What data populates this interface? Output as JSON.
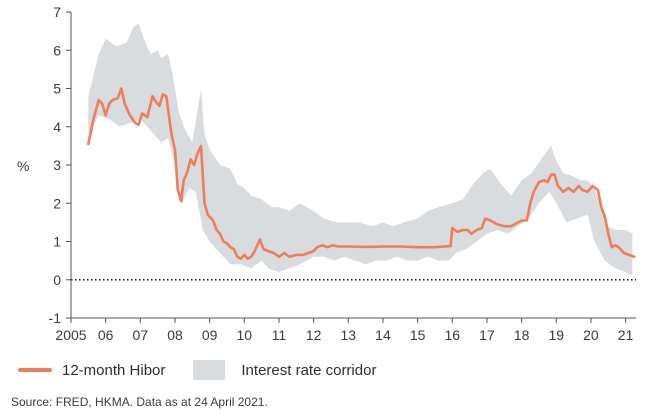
{
  "chart_data": {
    "type": "line",
    "title": "",
    "xlabel": "",
    "ylabel": "%",
    "xlim": [
      2005,
      2021.3
    ],
    "ylim": [
      -1,
      7
    ],
    "x_ticks": [
      2005,
      2006,
      2007,
      2008,
      2009,
      2010,
      2011,
      2012,
      2013,
      2014,
      2015,
      2016,
      2017,
      2018,
      2019,
      2020,
      2021
    ],
    "x_tick_labels": [
      "2005",
      "06",
      "07",
      "08",
      "09",
      "10",
      "11",
      "12",
      "13",
      "14",
      "15",
      "16",
      "17",
      "18",
      "19",
      "20",
      "21"
    ],
    "y_ticks": [
      -1,
      0,
      1,
      2,
      3,
      4,
      5,
      6,
      7
    ],
    "y_tick_labels": [
      "-1",
      "0",
      "1",
      "2",
      "3",
      "4",
      "5",
      "6",
      "7"
    ],
    "zero_line": true,
    "grid": false,
    "legend_position": "bottom-left",
    "band": {
      "name": "Interest rate corridor",
      "color": "#d9dcdf",
      "upper": [
        [
          2005.5,
          4.8
        ],
        [
          2005.8,
          5.9
        ],
        [
          2006.0,
          6.3
        ],
        [
          2006.3,
          6.1
        ],
        [
          2006.6,
          6.2
        ],
        [
          2006.8,
          6.6
        ],
        [
          2006.95,
          6.7
        ],
        [
          2007.1,
          6.3
        ],
        [
          2007.3,
          5.9
        ],
        [
          2007.5,
          6.0
        ],
        [
          2007.6,
          5.8
        ],
        [
          2007.8,
          5.9
        ],
        [
          2007.9,
          5.5
        ],
        [
          2008.0,
          5.0
        ],
        [
          2008.1,
          4.4
        ],
        [
          2008.3,
          3.9
        ],
        [
          2008.5,
          3.6
        ],
        [
          2008.7,
          4.7
        ],
        [
          2008.75,
          5.0
        ],
        [
          2008.85,
          3.8
        ],
        [
          2009.0,
          3.4
        ],
        [
          2009.3,
          3.0
        ],
        [
          2009.6,
          2.9
        ],
        [
          2009.8,
          2.5
        ],
        [
          2010.0,
          2.4
        ],
        [
          2010.2,
          2.2
        ],
        [
          2010.5,
          2.1
        ],
        [
          2010.8,
          1.9
        ],
        [
          2011.0,
          1.9
        ],
        [
          2011.3,
          1.8
        ],
        [
          2011.6,
          2.0
        ],
        [
          2012.0,
          1.8
        ],
        [
          2012.3,
          1.6
        ],
        [
          2012.7,
          1.5
        ],
        [
          2013.0,
          1.5
        ],
        [
          2013.3,
          1.5
        ],
        [
          2013.7,
          1.4
        ],
        [
          2014.0,
          1.5
        ],
        [
          2014.3,
          1.4
        ],
        [
          2014.6,
          1.5
        ],
        [
          2015.0,
          1.6
        ],
        [
          2015.3,
          1.8
        ],
        [
          2015.6,
          1.9
        ],
        [
          2016.0,
          2.0
        ],
        [
          2016.3,
          2.1
        ],
        [
          2016.6,
          2.5
        ],
        [
          2016.9,
          2.8
        ],
        [
          2017.1,
          2.9
        ],
        [
          2017.4,
          2.5
        ],
        [
          2017.7,
          2.2
        ],
        [
          2018.0,
          2.6
        ],
        [
          2018.3,
          2.8
        ],
        [
          2018.6,
          3.2
        ],
        [
          2018.85,
          3.5
        ],
        [
          2019.0,
          3.1
        ],
        [
          2019.2,
          2.8
        ],
        [
          2019.5,
          2.7
        ],
        [
          2019.7,
          2.6
        ],
        [
          2019.9,
          2.6
        ],
        [
          2020.1,
          2.4
        ],
        [
          2020.3,
          1.9
        ],
        [
          2020.5,
          1.4
        ],
        [
          2020.7,
          1.3
        ],
        [
          2021.0,
          1.3
        ],
        [
          2021.2,
          1.2
        ]
      ],
      "lower": [
        [
          2005.5,
          3.8
        ],
        [
          2005.8,
          4.3
        ],
        [
          2006.1,
          4.2
        ],
        [
          2006.4,
          4.0
        ],
        [
          2006.7,
          4.1
        ],
        [
          2007.0,
          4.2
        ],
        [
          2007.3,
          3.9
        ],
        [
          2007.6,
          3.6
        ],
        [
          2007.8,
          3.7
        ],
        [
          2008.0,
          3.0
        ],
        [
          2008.2,
          2.0
        ],
        [
          2008.4,
          2.4
        ],
        [
          2008.6,
          2.3
        ],
        [
          2008.8,
          1.3
        ],
        [
          2009.0,
          1.0
        ],
        [
          2009.3,
          0.7
        ],
        [
          2009.6,
          0.4
        ],
        [
          2009.9,
          0.4
        ],
        [
          2010.2,
          0.3
        ],
        [
          2010.5,
          0.5
        ],
        [
          2010.7,
          0.3
        ],
        [
          2011.0,
          0.2
        ],
        [
          2011.3,
          0.3
        ],
        [
          2011.6,
          0.4
        ],
        [
          2012.0,
          0.6
        ],
        [
          2012.3,
          0.6
        ],
        [
          2012.6,
          0.5
        ],
        [
          2012.9,
          0.6
        ],
        [
          2013.2,
          0.5
        ],
        [
          2013.5,
          0.4
        ],
        [
          2013.8,
          0.5
        ],
        [
          2014.1,
          0.5
        ],
        [
          2014.4,
          0.6
        ],
        [
          2014.7,
          0.5
        ],
        [
          2015.0,
          0.5
        ],
        [
          2015.3,
          0.6
        ],
        [
          2015.6,
          0.5
        ],
        [
          2015.9,
          0.5
        ],
        [
          2016.1,
          0.7
        ],
        [
          2016.4,
          0.8
        ],
        [
          2016.7,
          1.0
        ],
        [
          2017.0,
          1.2
        ],
        [
          2017.3,
          1.3
        ],
        [
          2017.6,
          1.2
        ],
        [
          2017.9,
          1.4
        ],
        [
          2018.2,
          1.6
        ],
        [
          2018.5,
          2.0
        ],
        [
          2018.8,
          2.3
        ],
        [
          2019.0,
          2.0
        ],
        [
          2019.3,
          1.5
        ],
        [
          2019.6,
          1.6
        ],
        [
          2019.9,
          1.7
        ],
        [
          2020.1,
          1.0
        ],
        [
          2020.4,
          0.5
        ],
        [
          2020.7,
          0.3
        ],
        [
          2021.0,
          0.2
        ],
        [
          2021.2,
          0.1
        ]
      ]
    },
    "series": [
      {
        "name": "12-month Hibor",
        "color": "#ee7d5b",
        "points": [
          [
            2005.5,
            3.55
          ],
          [
            2005.65,
            4.2
          ],
          [
            2005.8,
            4.7
          ],
          [
            2005.9,
            4.6
          ],
          [
            2006.0,
            4.3
          ],
          [
            2006.1,
            4.6
          ],
          [
            2006.2,
            4.7
          ],
          [
            2006.35,
            4.75
          ],
          [
            2006.45,
            5.0
          ],
          [
            2006.55,
            4.6
          ],
          [
            2006.7,
            4.3
          ],
          [
            2006.85,
            4.1
          ],
          [
            2006.95,
            4.05
          ],
          [
            2007.05,
            4.35
          ],
          [
            2007.2,
            4.25
          ],
          [
            2007.35,
            4.8
          ],
          [
            2007.45,
            4.65
          ],
          [
            2007.55,
            4.55
          ],
          [
            2007.65,
            4.85
          ],
          [
            2007.75,
            4.8
          ],
          [
            2007.9,
            3.8
          ],
          [
            2008.0,
            3.4
          ],
          [
            2008.08,
            2.35
          ],
          [
            2008.18,
            2.05
          ],
          [
            2008.25,
            2.6
          ],
          [
            2008.35,
            2.8
          ],
          [
            2008.45,
            3.15
          ],
          [
            2008.55,
            3.0
          ],
          [
            2008.65,
            3.3
          ],
          [
            2008.75,
            3.5
          ],
          [
            2008.85,
            2.0
          ],
          [
            2008.95,
            1.7
          ],
          [
            2009.1,
            1.55
          ],
          [
            2009.2,
            1.3
          ],
          [
            2009.3,
            1.2
          ],
          [
            2009.4,
            1.0
          ],
          [
            2009.5,
            0.95
          ],
          [
            2009.6,
            0.85
          ],
          [
            2009.7,
            0.8
          ],
          [
            2009.8,
            0.6
          ],
          [
            2009.9,
            0.55
          ],
          [
            2010.0,
            0.65
          ],
          [
            2010.1,
            0.55
          ],
          [
            2010.2,
            0.6
          ],
          [
            2010.3,
            0.75
          ],
          [
            2010.45,
            1.05
          ],
          [
            2010.55,
            0.8
          ],
          [
            2010.7,
            0.75
          ],
          [
            2010.85,
            0.7
          ],
          [
            2011.0,
            0.6
          ],
          [
            2011.15,
            0.7
          ],
          [
            2011.3,
            0.6
          ],
          [
            2011.5,
            0.65
          ],
          [
            2011.7,
            0.65
          ],
          [
            2011.85,
            0.7
          ],
          [
            2012.0,
            0.75
          ],
          [
            2012.1,
            0.85
          ],
          [
            2012.25,
            0.9
          ],
          [
            2012.4,
            0.85
          ],
          [
            2012.55,
            0.9
          ],
          [
            2012.7,
            0.87
          ],
          [
            2013.0,
            0.87
          ],
          [
            2013.5,
            0.86
          ],
          [
            2014.0,
            0.87
          ],
          [
            2014.5,
            0.87
          ],
          [
            2015.0,
            0.85
          ],
          [
            2015.5,
            0.85
          ],
          [
            2015.95,
            0.88
          ],
          [
            2016.0,
            1.35
          ],
          [
            2016.15,
            1.25
          ],
          [
            2016.3,
            1.3
          ],
          [
            2016.45,
            1.3
          ],
          [
            2016.55,
            1.2
          ],
          [
            2016.7,
            1.3
          ],
          [
            2016.85,
            1.35
          ],
          [
            2016.95,
            1.6
          ],
          [
            2017.1,
            1.55
          ],
          [
            2017.3,
            1.45
          ],
          [
            2017.5,
            1.4
          ],
          [
            2017.7,
            1.4
          ],
          [
            2017.9,
            1.5
          ],
          [
            2018.0,
            1.55
          ],
          [
            2018.15,
            1.55
          ],
          [
            2018.25,
            2.0
          ],
          [
            2018.35,
            2.3
          ],
          [
            2018.5,
            2.55
          ],
          [
            2018.65,
            2.6
          ],
          [
            2018.75,
            2.55
          ],
          [
            2018.85,
            2.75
          ],
          [
            2018.95,
            2.75
          ],
          [
            2019.05,
            2.45
          ],
          [
            2019.2,
            2.3
          ],
          [
            2019.35,
            2.4
          ],
          [
            2019.5,
            2.3
          ],
          [
            2019.65,
            2.45
          ],
          [
            2019.75,
            2.35
          ],
          [
            2019.9,
            2.3
          ],
          [
            2020.05,
            2.45
          ],
          [
            2020.2,
            2.35
          ],
          [
            2020.3,
            1.9
          ],
          [
            2020.4,
            1.65
          ],
          [
            2020.5,
            1.2
          ],
          [
            2020.6,
            0.85
          ],
          [
            2020.7,
            0.9
          ],
          [
            2020.8,
            0.85
          ],
          [
            2020.95,
            0.7
          ],
          [
            2021.1,
            0.65
          ],
          [
            2021.25,
            0.6
          ]
        ]
      }
    ]
  },
  "legend": {
    "line_label": "12-month Hibor",
    "band_label": "Interest rate corridor"
  },
  "source": "Source: FRED, HKMA. Data as at 24 April 2021."
}
